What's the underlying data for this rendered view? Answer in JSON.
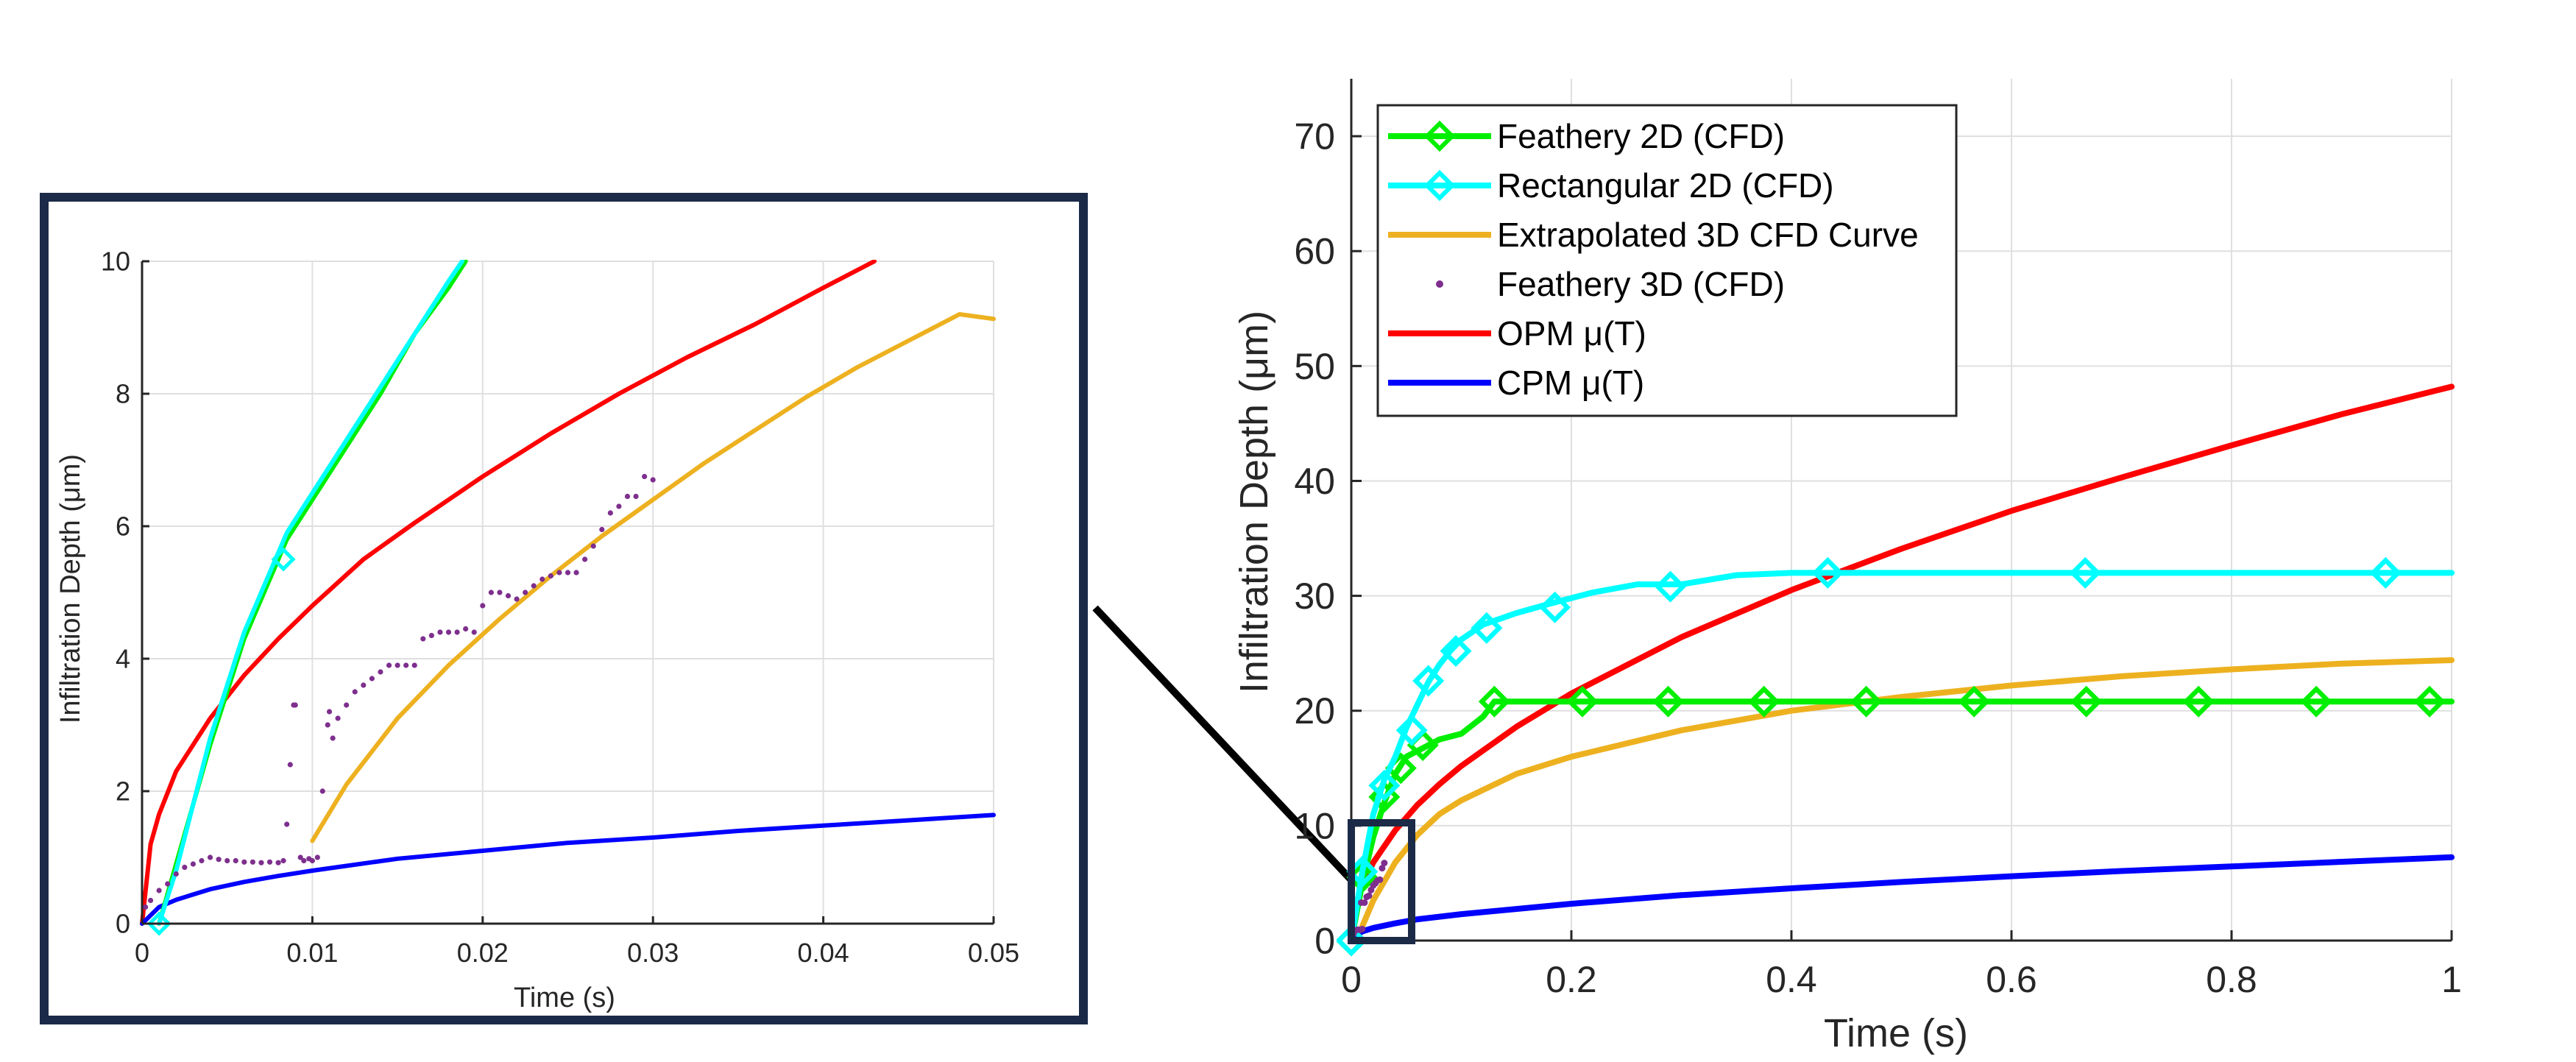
{
  "chart_data": [
    {
      "type": "line",
      "panel": "inset-zoom",
      "xlabel": "Time (s)",
      "ylabel": "Infiltration Depth (μm)",
      "xlim": [
        0,
        0.05
      ],
      "ylim": [
        0,
        10
      ],
      "xticks": [
        "0",
        "0.01",
        "0.02",
        "0.03",
        "0.04",
        "0.05"
      ],
      "yticks": [
        "0",
        "2",
        "4",
        "6",
        "8",
        "10"
      ],
      "grid": true,
      "series": [
        {
          "name": "Feathery 2D (CFD)",
          "color": "#00ee00",
          "style": "line-diamond",
          "x": [
            0.001,
            0.002,
            0.004,
            0.006,
            0.008,
            0.0085,
            0.01,
            0.012,
            0.014,
            0.016,
            0.018,
            0.019
          ],
          "y": [
            0.0,
            0.9,
            2.7,
            4.3,
            5.5,
            5.8,
            6.4,
            7.2,
            8.0,
            8.9,
            9.6,
            10.0
          ],
          "markers": {
            "x": [
              0.001,
              0.0083
            ],
            "y": [
              0.0,
              5.5
            ]
          }
        },
        {
          "name": "Rectangular 2D (CFD)",
          "color": "#00ffff",
          "style": "line-diamond",
          "x": [
            0.001,
            0.002,
            0.004,
            0.006,
            0.008,
            0.0085,
            0.01,
            0.012,
            0.014,
            0.016,
            0.018,
            0.0188
          ],
          "y": [
            0.0,
            0.8,
            2.8,
            4.4,
            5.6,
            5.9,
            6.5,
            7.3,
            8.1,
            8.9,
            9.7,
            10.0
          ],
          "markers": {
            "x": [
              0.001,
              0.0083
            ],
            "y": [
              0.0,
              5.5
            ]
          }
        },
        {
          "name": "Extrapolated 3D CFD Curve",
          "color": "#edb120",
          "style": "line",
          "x": [
            0.01,
            0.012,
            0.015,
            0.018,
            0.021,
            0.024,
            0.027,
            0.03,
            0.033,
            0.036,
            0.039,
            0.042,
            0.045,
            0.048,
            0.05
          ],
          "y": [
            1.25,
            2.1,
            3.1,
            3.9,
            4.6,
            5.25,
            5.85,
            6.4,
            6.95,
            7.45,
            7.95,
            8.4,
            8.8,
            9.2,
            9.13
          ]
        },
        {
          "name": "Feathery 3D (CFD)",
          "color": "#7e2f8e",
          "style": "dots",
          "x": [
            0.0002,
            0.0005,
            0.001,
            0.0015,
            0.002,
            0.0025,
            0.003,
            0.0035,
            0.004,
            0.0045,
            0.005,
            0.0055,
            0.006,
            0.0065,
            0.007,
            0.0075,
            0.008,
            0.0083,
            0.0085,
            0.0087,
            0.0089,
            0.009,
            0.0093,
            0.0095,
            0.0098,
            0.01,
            0.0103,
            0.0106,
            0.0109,
            0.011,
            0.0112,
            0.0115,
            0.012,
            0.0125,
            0.013,
            0.0135,
            0.014,
            0.0145,
            0.015,
            0.0155,
            0.016,
            0.0165,
            0.017,
            0.0175,
            0.018,
            0.0185,
            0.019,
            0.0195,
            0.02,
            0.0205,
            0.021,
            0.0215,
            0.022,
            0.0225,
            0.023,
            0.0235,
            0.024,
            0.0245,
            0.025,
            0.0255,
            0.026,
            0.0265,
            0.027,
            0.0275,
            0.028,
            0.0285,
            0.029,
            0.0295,
            0.03
          ],
          "y": [
            0.25,
            0.35,
            0.5,
            0.6,
            0.75,
            0.85,
            0.9,
            0.95,
            1.0,
            0.97,
            0.95,
            0.95,
            0.93,
            0.93,
            0.92,
            0.93,
            0.92,
            0.95,
            1.5,
            2.4,
            3.3,
            3.3,
            1.0,
            0.95,
            0.98,
            0.95,
            1.0,
            2.0,
            3.0,
            3.2,
            2.8,
            3.1,
            3.3,
            3.5,
            3.6,
            3.7,
            3.8,
            3.9,
            3.9,
            3.9,
            3.9,
            4.3,
            4.35,
            4.4,
            4.4,
            4.4,
            4.45,
            4.4,
            4.8,
            5.0,
            5.0,
            4.95,
            4.9,
            5.0,
            5.1,
            5.2,
            5.25,
            5.3,
            5.3,
            5.3,
            5.5,
            5.7,
            5.95,
            6.2,
            6.3,
            6.45,
            6.45,
            6.75,
            6.7
          ]
        },
        {
          "name": "OPM μ(T)",
          "color": "#ff0000",
          "style": "line",
          "x": [
            0,
            0.0005,
            0.001,
            0.002,
            0.004,
            0.006,
            0.008,
            0.01,
            0.013,
            0.016,
            0.02,
            0.024,
            0.028,
            0.032,
            0.036,
            0.04,
            0.043
          ],
          "y": [
            0,
            1.2,
            1.65,
            2.3,
            3.1,
            3.75,
            4.3,
            4.8,
            5.5,
            6.05,
            6.75,
            7.4,
            8.0,
            8.55,
            9.05,
            9.6,
            10.0
          ]
        },
        {
          "name": "CPM μ(T)",
          "color": "#0000ff",
          "style": "line",
          "x": [
            0,
            0.001,
            0.002,
            0.004,
            0.006,
            0.008,
            0.01,
            0.015,
            0.02,
            0.025,
            0.03,
            0.035,
            0.04,
            0.045,
            0.05
          ],
          "y": [
            0,
            0.25,
            0.36,
            0.52,
            0.63,
            0.72,
            0.8,
            0.98,
            1.1,
            1.22,
            1.3,
            1.4,
            1.48,
            1.56,
            1.64
          ]
        }
      ]
    },
    {
      "type": "line",
      "panel": "main",
      "xlabel": "Time (s)",
      "ylabel": "Infiltration Depth (μm)",
      "xlim": [
        0,
        1
      ],
      "ylim": [
        0,
        75
      ],
      "xticks": [
        "0",
        "0.2",
        "0.4",
        "0.6",
        "0.8",
        "1"
      ],
      "yticks": [
        "0",
        "10",
        "20",
        "30",
        "40",
        "50",
        "60",
        "70"
      ],
      "grid": true,
      "legend": "top-left",
      "series": [
        {
          "name": "Feathery 2D (CFD)",
          "color": "#00ee00",
          "style": "line-diamond",
          "x": [
            0,
            0.01,
            0.02,
            0.03,
            0.04,
            0.05,
            0.06,
            0.07,
            0.08,
            0.1,
            0.12,
            0.13,
            0.2,
            0.3,
            0.4,
            0.5,
            0.6,
            0.7,
            0.8,
            0.9,
            1.0
          ],
          "y": [
            0,
            5,
            9,
            12,
            14.5,
            16,
            16.5,
            17,
            17.5,
            18,
            19.5,
            20.8,
            20.8,
            20.8,
            20.8,
            20.8,
            20.8,
            20.8,
            20.8,
            20.8,
            20.8
          ],
          "markers": {
            "x": [
              0,
              0.01,
              0.03,
              0.045,
              0.065,
              0.13,
              0.21,
              0.288,
              0.375,
              0.468,
              0.566,
              0.668,
              0.77,
              0.877,
              0.98
            ],
            "y": [
              0,
              5.5,
              12.5,
              15,
              17,
              20.8,
              20.8,
              20.8,
              20.8,
              20.8,
              20.8,
              20.8,
              20.8,
              20.8,
              20.8
            ]
          }
        },
        {
          "name": "Rectangular 2D (CFD)",
          "color": "#00ffff",
          "style": "line-diamond",
          "x": [
            0,
            0.01,
            0.02,
            0.03,
            0.04,
            0.05,
            0.06,
            0.07,
            0.08,
            0.09,
            0.1,
            0.12,
            0.15,
            0.18,
            0.22,
            0.26,
            0.3,
            0.35,
            0.4,
            0.45,
            0.5,
            0.6,
            0.7,
            0.8,
            0.9,
            1.0
          ],
          "y": [
            0,
            6,
            11,
            14,
            16,
            18.5,
            20.5,
            22.5,
            24,
            25.2,
            26.2,
            27.5,
            28.5,
            29.3,
            30.3,
            31,
            31,
            31.8,
            32,
            32,
            32,
            32,
            32,
            32,
            32,
            32
          ],
          "markers": {
            "x": [
              0,
              0.01,
              0.03,
              0.055,
              0.07,
              0.095,
              0.123,
              0.185,
              0.29,
              0.433,
              0.667,
              0.94
            ],
            "y": [
              0,
              6,
              13.5,
              18.3,
              22.6,
              25.2,
              27.2,
              29,
              30.8,
              32,
              32,
              32
            ]
          }
        },
        {
          "name": "Extrapolated 3D CFD Curve",
          "color": "#edb120",
          "style": "line",
          "x": [
            0.01,
            0.02,
            0.04,
            0.06,
            0.08,
            0.1,
            0.15,
            0.2,
            0.3,
            0.4,
            0.5,
            0.6,
            0.7,
            0.8,
            0.9,
            1.0
          ],
          "y": [
            1.25,
            3.5,
            6.8,
            9.2,
            11,
            12.2,
            14.5,
            16,
            18.3,
            20,
            21.2,
            22.2,
            23,
            23.6,
            24.1,
            24.4
          ]
        },
        {
          "name": "Feathery 3D (CFD)",
          "color": "#7e2f8e",
          "style": "dots",
          "x": [
            0.002,
            0.004,
            0.006,
            0.008,
            0.009,
            0.01,
            0.012,
            0.014,
            0.016,
            0.018,
            0.02,
            0.022,
            0.024,
            0.026,
            0.028,
            0.03
          ],
          "y": [
            0.6,
            0.9,
            0.95,
            0.93,
            3.3,
            1.0,
            3.3,
            3.8,
            3.9,
            4.4,
            4.8,
            5.0,
            5.25,
            5.3,
            6.3,
            6.75
          ]
        },
        {
          "name": "OPM μ(T)",
          "color": "#ff0000",
          "style": "line",
          "x": [
            0,
            0.005,
            0.01,
            0.02,
            0.04,
            0.06,
            0.08,
            0.1,
            0.15,
            0.2,
            0.3,
            0.4,
            0.5,
            0.6,
            0.7,
            0.8,
            0.9,
            1.0
          ],
          "y": [
            0,
            3.4,
            4.8,
            6.8,
            9.6,
            11.8,
            13.6,
            15.2,
            18.6,
            21.5,
            26.4,
            30.5,
            34.1,
            37.4,
            40.3,
            43.1,
            45.8,
            48.2
          ]
        },
        {
          "name": "CPM μ(T)",
          "color": "#0000ff",
          "style": "line",
          "x": [
            0,
            0.005,
            0.01,
            0.02,
            0.04,
            0.06,
            0.1,
            0.2,
            0.3,
            0.4,
            0.5,
            0.6,
            0.7,
            0.8,
            0.9,
            1.0
          ],
          "y": [
            0,
            0.5,
            0.8,
            1.1,
            1.5,
            1.85,
            2.3,
            3.2,
            3.95,
            4.55,
            5.1,
            5.6,
            6.05,
            6.45,
            6.85,
            7.25
          ]
        }
      ]
    }
  ]
}
